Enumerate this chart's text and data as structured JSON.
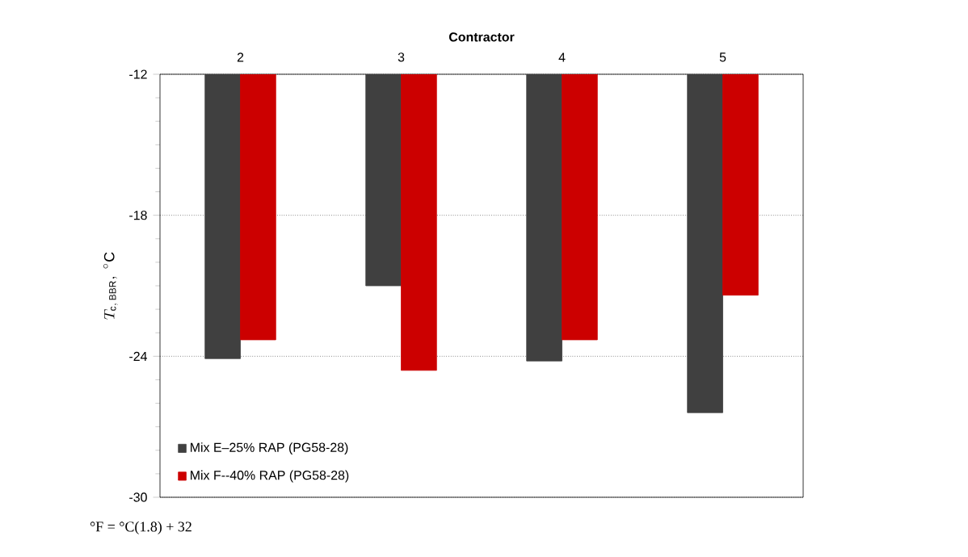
{
  "chart_data": {
    "type": "bar",
    "xlabel": "Contractor",
    "ylabel": "T_{\\mathrm{c,\\,BBR}},\\ {}^{\\circ}\\mathrm{C}",
    "categories": [
      "2",
      "3",
      "4",
      "5"
    ],
    "series": [
      {
        "name": "Mix E–25% RAP (PG58-28)",
        "color": "#404040",
        "values": [
          -24.1,
          -21.0,
          -24.2,
          -26.4
        ]
      },
      {
        "name": "Mix F--40% RAP (PG58-28)",
        "color": "#cc0000",
        "values": [
          -23.3,
          -24.6,
          -23.3,
          -21.4
        ]
      }
    ],
    "ylim": [
      -30,
      -12
    ],
    "yticks": [
      -30,
      -24,
      -18,
      -12
    ],
    "grid": "y",
    "legend": "bottom left",
    "annotations": [
      "°F = °C(1.8) + 32"
    ]
  }
}
